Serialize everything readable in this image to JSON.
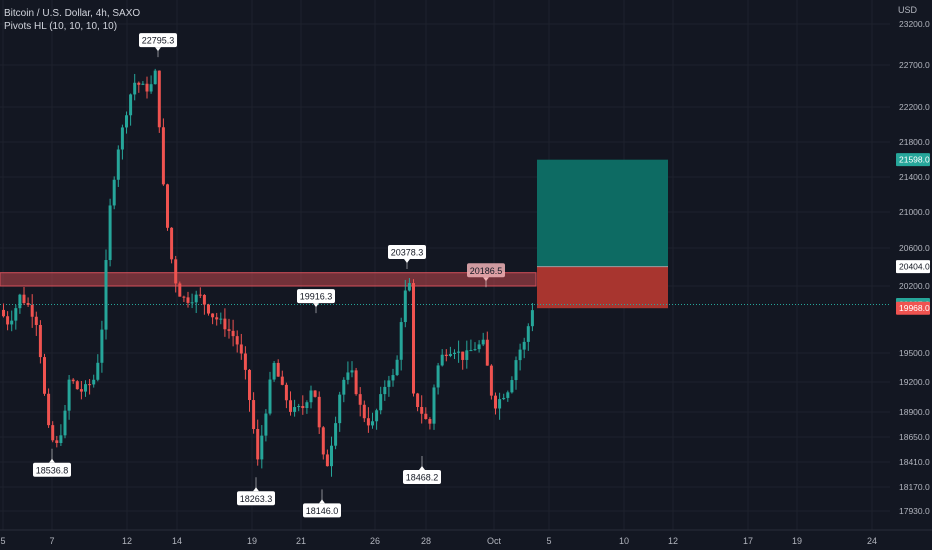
{
  "header": {
    "symbol_line": "Bitcoin / U.S. Dollar, 4h, SAXO",
    "indicator_line": "Pivots HL (10, 10, 10, 10)"
  },
  "price_axis": {
    "currency": "USD",
    "ticks": [
      "23200.0",
      "22700.0",
      "22200.0",
      "21800.0",
      "21400.0",
      "21000.0",
      "20600.0",
      "20200.0",
      "19500.0",
      "19200.0",
      "18900.0",
      "18650.0",
      "18410.0",
      "18170.0",
      "17930.0"
    ],
    "badges": [
      {
        "label": "21598.0",
        "value": 21598.0,
        "color": "#26a69a",
        "text_color": "#ffffff"
      },
      {
        "label": "20404.0",
        "value": 20404.0,
        "color": "#ffffff",
        "text_color": "#131722"
      },
      {
        "label": "20007.3",
        "value": 20007.3,
        "color": "#26a69a",
        "text_color": "#ffffff"
      },
      {
        "label": "19968.0",
        "value": 19968.0,
        "color": "#ef5350",
        "text_color": "#ffffff"
      }
    ]
  },
  "time_axis": {
    "labels": [
      "5",
      "7",
      "12",
      "14",
      "19",
      "21",
      "26",
      "28",
      "Oct",
      "5",
      "10",
      "12",
      "17",
      "19",
      "24"
    ]
  },
  "chart_data": {
    "type": "candlestick",
    "pivot_labels": [
      {
        "text": "22795.3",
        "kind": "high",
        "value": 22795.3
      },
      {
        "text": "18536.8",
        "kind": "low",
        "value": 18536.8
      },
      {
        "text": "19916.3",
        "kind": "high",
        "value": 19916.3
      },
      {
        "text": "18263.3",
        "kind": "low",
        "value": 18263.3
      },
      {
        "text": "18146.0",
        "kind": "low",
        "value": 18146.0
      },
      {
        "text": "20378.3",
        "kind": "high",
        "value": 20378.3
      },
      {
        "text": "18468.2",
        "kind": "low",
        "value": 18468.2
      },
      {
        "text": "20186.5",
        "kind": "high",
        "value": 20186.5
      }
    ],
    "zone": {
      "from": 20200,
      "to": 20340
    },
    "position": {
      "entry": 20404.0,
      "target": 21598.0,
      "stop": 19968.0
    },
    "last_price": 20007.3,
    "colors": {
      "up": "#26a69a",
      "down": "#ef5350",
      "zone": "#b2434a",
      "profit": "#0d6b63",
      "loss": "#a8352f"
    }
  }
}
